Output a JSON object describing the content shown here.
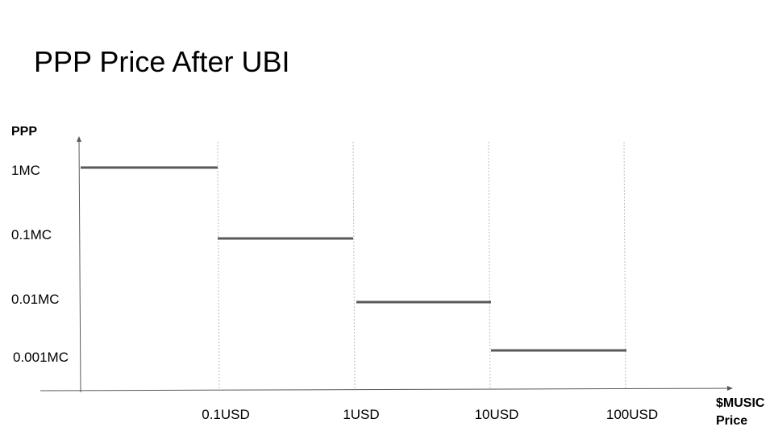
{
  "slide": {
    "title": "PPP Price After UBI"
  },
  "chart_data": {
    "type": "line",
    "title": "PPP Price After UBI",
    "ylabel": "PPP",
    "xlabel": "$MUSIC Price",
    "xlabel_lines": [
      "$MUSIC",
      "Price"
    ],
    "x_scale": "log",
    "y_scale": "log",
    "x_ticks": [
      "0.1USD",
      "1USD",
      "10USD",
      "100USD"
    ],
    "y_ticks": [
      "1MC",
      "0.1MC",
      "0.01MC",
      "0.001MC"
    ],
    "grid": "vertical dotted at x ticks",
    "legend": "none",
    "series": [
      {
        "style": "step",
        "segments": [
          {
            "x_from": "0",
            "x_to": "0.1USD",
            "y": "1MC"
          },
          {
            "x_from": "0.1USD",
            "x_to": "1USD",
            "y": "0.1MC"
          },
          {
            "x_from": "1USD",
            "x_to": "10USD",
            "y": "0.01MC"
          },
          {
            "x_from": "10USD",
            "x_to": "100USD",
            "y": "0.001MC"
          }
        ]
      }
    ],
    "colors": {
      "line": "#595959",
      "axis": "#595959",
      "grid": "#bdbdbd"
    }
  }
}
